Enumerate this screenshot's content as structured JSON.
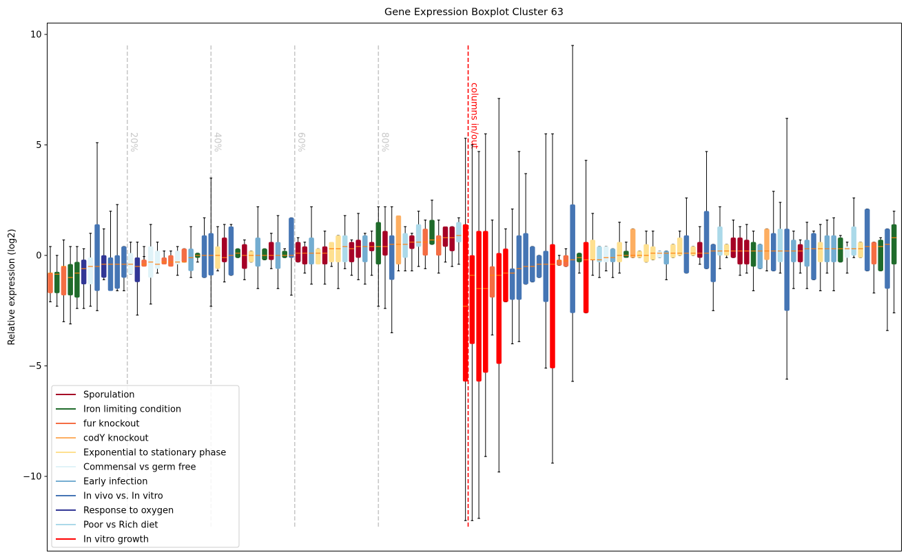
{
  "chart_data": {
    "type": "boxplot",
    "title": "Gene Expression Boxplot Cluster 63",
    "xlabel": "",
    "ylabel": "Relative expression (log2)",
    "ylim": [
      -13.5,
      10.5
    ],
    "yticks": [
      10,
      5,
      0,
      -5,
      -10
    ],
    "ytick_labels": [
      "10",
      "5",
      "0",
      "−5",
      "−10"
    ],
    "grid": false,
    "legend_position": "bottom-left",
    "categories": {
      "Sp": {
        "name": "Sporulation",
        "color": "#a50026"
      },
      "Ir": {
        "name": "Iron limiting condition",
        "color": "#1f6b2b"
      },
      "Fu": {
        "name": "fur knockout",
        "color": "#f46d43"
      },
      "Co": {
        "name": "codY knockout",
        "color": "#fdae61"
      },
      "Ex": {
        "name": "Exponential to stationary phase",
        "color": "#fee090"
      },
      "Cm": {
        "name": "Commensal vs germ free",
        "color": "#e0f3f8"
      },
      "Ea": {
        "name": "Early infection",
        "color": "#74add1"
      },
      "Iv": {
        "name": "In vivo vs. In vitro",
        "color": "#4575b4"
      },
      "Ox": {
        "name": "Response to oxygen",
        "color": "#313695"
      },
      "Po": {
        "name": "Poor vs Rich diet",
        "color": "#abd9e9"
      },
      "Vi": {
        "name": "In vitro growth",
        "color": "#ff0000"
      }
    },
    "legend_order": [
      "Sp",
      "Ir",
      "Fu",
      "Co",
      "Ex",
      "Cm",
      "Ea",
      "Iv",
      "Ox",
      "Po",
      "Vi"
    ],
    "median_color": "#ff7f0e",
    "vlines": [
      {
        "label": "20%",
        "position": 11.5,
        "color": "#c8c8c8"
      },
      {
        "label": "40%",
        "position": 24,
        "color": "#c8c8c8"
      },
      {
        "label": "60%",
        "position": 36.5,
        "color": "#c8c8c8"
      },
      {
        "label": "80%",
        "position": 49,
        "color": "#c8c8c8"
      },
      {
        "label": "columns in/out",
        "position": 62.4,
        "color": "#ff0000"
      }
    ],
    "vline_range": [
      -12.3,
      9.5
    ],
    "boxes": [
      [
        "Fu",
        -2.1,
        -1.7,
        -0.8,
        -0.8,
        0.4
      ],
      [
        "Ir",
        -2.3,
        -1.7,
        -0.75,
        -0.85,
        0.0
      ],
      [
        "Fu",
        -3.0,
        -1.8,
        -0.5,
        -0.5,
        0.7
      ],
      [
        "Ir",
        -3.1,
        -1.8,
        -0.4,
        -1.0,
        0.4
      ],
      [
        "Ir",
        -2.4,
        -1.9,
        -0.3,
        -0.8,
        0.4
      ],
      [
        "Ox",
        -2.4,
        -1.3,
        -0.2,
        -0.6,
        0.3
      ],
      [
        "Cm",
        -2.3,
        -1.3,
        -0.1,
        -0.5,
        1.0
      ],
      [
        "Iv",
        -2.5,
        -1.6,
        1.4,
        -0.5,
        5.1
      ],
      [
        "Ox",
        -1.1,
        -1.0,
        0.0,
        -0.4,
        1.2
      ],
      [
        "Iv",
        -1.5,
        -1.6,
        -0.1,
        -0.4,
        2.0
      ],
      [
        "Iv",
        -1.6,
        -1.5,
        0.0,
        -0.4,
        2.3
      ],
      [
        "Iv",
        -1.6,
        -1.0,
        0.4,
        -0.4,
        0.4
      ],
      [
        "Cm",
        -0.85,
        -0.85,
        0.1,
        -0.4,
        0.6
      ],
      [
        "Ox",
        -2.7,
        -1.2,
        -0.1,
        -0.5,
        0.6
      ],
      [
        "Fu",
        -0.05,
        -0.5,
        -0.2,
        -0.4,
        0.4
      ],
      [
        "Cm",
        -2.2,
        -1.0,
        0.4,
        -0.3,
        1.4
      ],
      [
        "Cm",
        -0.8,
        -0.6,
        0.2,
        -0.4,
        0.6
      ],
      [
        "Fu",
        -0.3,
        -0.4,
        -0.1,
        -0.3,
        0.2
      ],
      [
        "Fu",
        -0.3,
        -0.5,
        0.0,
        -0.3,
        0.2
      ],
      [
        "Cm",
        -0.9,
        -0.4,
        0.2,
        -0.3,
        0.4
      ],
      [
        "Fu",
        -0.3,
        -0.3,
        0.3,
        -0.3,
        0.3
      ],
      [
        "Ea",
        -1.0,
        -0.7,
        0.3,
        -0.1,
        1.3
      ],
      [
        "Ir",
        -0.3,
        -0.1,
        0.1,
        0.0,
        0.1
      ],
      [
        "Iv",
        -1.0,
        -1.0,
        0.9,
        0.0,
        1.7
      ],
      [
        "Iv",
        -2.3,
        -0.9,
        1.0,
        0.0,
        3.5
      ],
      [
        "Ex",
        -0.7,
        -0.6,
        0.4,
        0.0,
        1.3
      ],
      [
        "Sp",
        -1.2,
        -0.3,
        0.8,
        -0.1,
        1.4
      ],
      [
        "Iv",
        -0.9,
        -0.9,
        1.3,
        0.0,
        1.4
      ],
      [
        "Ir",
        -0.1,
        -0.1,
        0.3,
        0.1,
        0.3
      ],
      [
        "Sp",
        -1.1,
        -0.6,
        0.5,
        0.0,
        0.7
      ],
      [
        "Ex",
        -0.3,
        -0.3,
        0.2,
        0.0,
        0.2
      ],
      [
        "Ea",
        -1.5,
        -0.5,
        0.8,
        0.0,
        2.2
      ],
      [
        "Ir",
        -0.2,
        -0.2,
        0.3,
        0.0,
        0.3
      ],
      [
        "Sp",
        -0.6,
        -0.2,
        0.6,
        0.0,
        1.0
      ],
      [
        "Ea",
        -1.5,
        -0.6,
        0.6,
        0.0,
        1.8
      ],
      [
        "Ir",
        -0.1,
        -0.1,
        0.2,
        0.0,
        0.3
      ],
      [
        "Iv",
        -1.8,
        -0.1,
        1.7,
        0.0,
        1.7
      ],
      [
        "Sp",
        -0.3,
        -0.3,
        0.6,
        0.1,
        0.8
      ],
      [
        "Sp",
        -0.8,
        -0.4,
        0.4,
        0.1,
        0.6
      ],
      [
        "Ea",
        -1.3,
        -0.4,
        0.8,
        0.1,
        2.2
      ],
      [
        "Ex",
        -0.3,
        -0.4,
        0.3,
        0.1,
        0.3
      ],
      [
        "Sp",
        -1.3,
        -0.4,
        0.4,
        0.1,
        1.1
      ],
      [
        "Ex",
        -0.5,
        -0.3,
        0.6,
        0.3,
        0.5
      ],
      [
        "Ex",
        -1.5,
        -0.3,
        0.9,
        0.3,
        0.9
      ],
      [
        "Po",
        -0.6,
        -0.3,
        0.9,
        0.4,
        1.8
      ],
      [
        "Sp",
        -0.9,
        -0.3,
        0.6,
        0.3,
        0.7
      ],
      [
        "Sp",
        -1.1,
        -0.1,
        0.7,
        0.4,
        1.9
      ],
      [
        "Ea",
        -1.3,
        -0.3,
        0.9,
        0.4,
        1.0
      ],
      [
        "Sp",
        -0.9,
        0.2,
        0.6,
        0.4,
        1.1
      ],
      [
        "Ir",
        -2.3,
        -0.4,
        1.5,
        0.4,
        2.2
      ],
      [
        "Sp",
        -2.4,
        0.0,
        1.1,
        0.4,
        2.2
      ],
      [
        "Iv",
        -3.5,
        -1.1,
        0.9,
        0.5,
        2.2
      ],
      [
        "Co",
        -0.7,
        -0.4,
        1.8,
        0.5,
        1.6
      ],
      [
        "Po",
        -0.7,
        -0.1,
        1.0,
        0.5,
        1.3
      ],
      [
        "Sp",
        -0.7,
        0.3,
        0.9,
        0.6,
        1.0
      ],
      [
        "Po",
        -0.5,
        0.4,
        1.4,
        0.6,
        2.0
      ],
      [
        "Fu",
        -0.6,
        0.0,
        1.2,
        0.6,
        1.6
      ],
      [
        "Ir",
        0.5,
        0.5,
        1.6,
        0.7,
        2.5
      ],
      [
        "Fu",
        -0.8,
        0.0,
        0.9,
        0.7,
        1.6
      ],
      [
        "Sp",
        -0.3,
        0.4,
        1.3,
        0.8,
        1.2
      ],
      [
        "Sp",
        -0.5,
        0.2,
        1.3,
        0.8,
        1.3
      ],
      [
        "Po",
        -0.4,
        0.6,
        1.5,
        0.9,
        1.7
      ],
      [
        "Vi",
        -12.0,
        -5.7,
        1.4,
        -2.3,
        5.3
      ],
      [
        "Vi",
        -12.0,
        -4.0,
        0.0,
        -0.9,
        5.0
      ],
      [
        "Vi",
        -11.9,
        -5.7,
        1.1,
        -1.5,
        4.7
      ],
      [
        "Vi",
        -9.1,
        -5.3,
        1.1,
        -1.5,
        5.5
      ],
      [
        "Fu",
        -3.6,
        -1.9,
        -0.5,
        -0.9,
        1.6
      ],
      [
        "Vi",
        -9.8,
        -4.9,
        0.1,
        -0.9,
        7.1
      ],
      [
        "Vi",
        -2.1,
        -2.1,
        0.3,
        -0.8,
        1.2
      ],
      [
        "Iv",
        -4.0,
        -2.0,
        -0.6,
        -0.8,
        2.1
      ],
      [
        "Iv",
        -3.9,
        -2.0,
        0.9,
        -0.6,
        4.7
      ],
      [
        "Iv",
        -1.3,
        -1.3,
        1.0,
        -0.5,
        3.7
      ],
      [
        "Iv",
        -1.2,
        -1.2,
        0.4,
        -0.5,
        0.4
      ],
      [
        "Iv",
        -1.0,
        -1.0,
        0.0,
        -0.4,
        0.0
      ],
      [
        "Iv",
        -5.1,
        -2.1,
        0.2,
        -0.4,
        5.5
      ],
      [
        "Vi",
        -9.4,
        -5.1,
        0.5,
        -0.4,
        5.5
      ],
      [
        "Fu",
        -0.45,
        -0.45,
        -0.2,
        -0.25,
        0.0
      ],
      [
        "Fu",
        -0.5,
        -0.5,
        0.0,
        -0.25,
        0.3
      ],
      [
        "Iv",
        -5.7,
        -2.6,
        2.3,
        -0.2,
        9.5
      ],
      [
        "Ir",
        -0.8,
        -0.3,
        0.1,
        -0.1,
        0.1
      ],
      [
        "Vi",
        -2.6,
        -2.6,
        0.6,
        -0.2,
        4.3
      ],
      [
        "Ex",
        -0.9,
        -0.2,
        0.7,
        -0.2,
        1.9
      ],
      [
        "Po",
        -1.0,
        -0.3,
        0.4,
        -0.2,
        0.4
      ],
      [
        "Cm",
        -0.7,
        -0.3,
        0.4,
        -0.1,
        0.4
      ],
      [
        "Ea",
        -1.0,
        -0.3,
        0.3,
        -0.1,
        0.3
      ],
      [
        "Ex",
        -0.8,
        -0.3,
        0.6,
        0.0,
        1.5
      ],
      [
        "Ir",
        0.1,
        -0.1,
        0.2,
        0.0,
        0.6
      ],
      [
        "Co",
        -0.1,
        -0.1,
        1.2,
        0.0,
        1.2
      ],
      [
        "Ex",
        -0.1,
        -0.1,
        0.2,
        0.0,
        0.2
      ],
      [
        "Ex",
        -0.3,
        -0.3,
        0.5,
        0.0,
        1.1
      ],
      [
        "Ex",
        -0.2,
        -0.2,
        0.4,
        0.1,
        1.1
      ],
      [
        "Cm",
        -0.1,
        -0.1,
        0.2,
        0.1,
        0.2
      ],
      [
        "Ea",
        -1.1,
        -0.4,
        0.2,
        0.1,
        0.2
      ],
      [
        "Ex",
        -0.1,
        -0.1,
        0.5,
        0.1,
        0.5
      ],
      [
        "Ex",
        0.0,
        0.0,
        0.8,
        0.1,
        1.1
      ],
      [
        "Iv",
        -0.8,
        -0.8,
        0.9,
        0.1,
        2.6
      ],
      [
        "Ex",
        0.0,
        0.0,
        0.4,
        0.1,
        0.4
      ],
      [
        "Sp",
        -0.4,
        -0.1,
        0.6,
        0.1,
        1.3
      ],
      [
        "Iv",
        -0.6,
        -0.6,
        2.0,
        0.1,
        4.7
      ],
      [
        "Iv",
        -2.5,
        -1.2,
        0.5,
        0.2,
        0.5
      ],
      [
        "Po",
        -0.6,
        0.0,
        1.3,
        0.2,
        2.2
      ],
      [
        "Ex",
        -0.1,
        0.0,
        0.5,
        0.2,
        0.5
      ],
      [
        "Sp",
        -0.1,
        -0.1,
        0.8,
        0.2,
        1.6
      ],
      [
        "Sp",
        -0.9,
        -0.4,
        0.8,
        0.2,
        1.3
      ],
      [
        "Sp",
        -0.8,
        -0.4,
        0.7,
        0.2,
        1.4
      ],
      [
        "Ir",
        -1.6,
        -0.5,
        0.6,
        0.2,
        1.1
      ],
      [
        "Ea",
        -0.6,
        -0.6,
        0.5,
        0.2,
        0.5
      ],
      [
        "Co",
        -0.7,
        -0.2,
        1.2,
        0.2,
        1.2
      ],
      [
        "Iv",
        -0.7,
        -0.7,
        1.0,
        0.2,
        2.9
      ],
      [
        "Po",
        -0.8,
        -0.3,
        1.2,
        0.2,
        2.4
      ],
      [
        "Iv",
        -5.6,
        -2.5,
        1.2,
        0.2,
        6.2
      ],
      [
        "Ea",
        -1.5,
        -0.3,
        0.7,
        0.2,
        1.1
      ],
      [
        "Sp",
        -0.8,
        -0.3,
        0.5,
        0.2,
        0.7
      ],
      [
        "Ea",
        -1.5,
        -0.5,
        0.7,
        0.3,
        1.5
      ],
      [
        "Iv",
        -1.1,
        -1.1,
        1.0,
        0.3,
        1.1
      ],
      [
        "Ex",
        -1.6,
        -0.3,
        0.6,
        0.3,
        1.4
      ],
      [
        "Ea",
        -0.8,
        -0.3,
        0.9,
        0.3,
        1.6
      ],
      [
        "Ea",
        -1.6,
        -0.3,
        0.9,
        0.3,
        1.7
      ],
      [
        "Ir",
        -0.3,
        -0.3,
        0.8,
        0.3,
        0.9
      ],
      [
        "Cm",
        -0.8,
        -0.1,
        0.4,
        0.3,
        0.6
      ],
      [
        "Po",
        -0.1,
        0.0,
        1.3,
        0.3,
        2.6
      ],
      [
        "Ex",
        -0.1,
        -0.1,
        0.6,
        0.3,
        0.6
      ],
      [
        "Iv",
        -0.7,
        -0.7,
        2.1,
        0.4,
        2.1
      ],
      [
        "Fu",
        -1.7,
        -0.4,
        0.6,
        0.4,
        0.6
      ],
      [
        "Ir",
        -0.7,
        -0.7,
        0.7,
        0.4,
        0.8
      ],
      [
        "Iv",
        -3.4,
        -1.5,
        1.2,
        0.5,
        1.2
      ],
      [
        "Ir",
        -2.6,
        -0.4,
        1.4,
        0.8,
        2.0
      ]
    ]
  }
}
